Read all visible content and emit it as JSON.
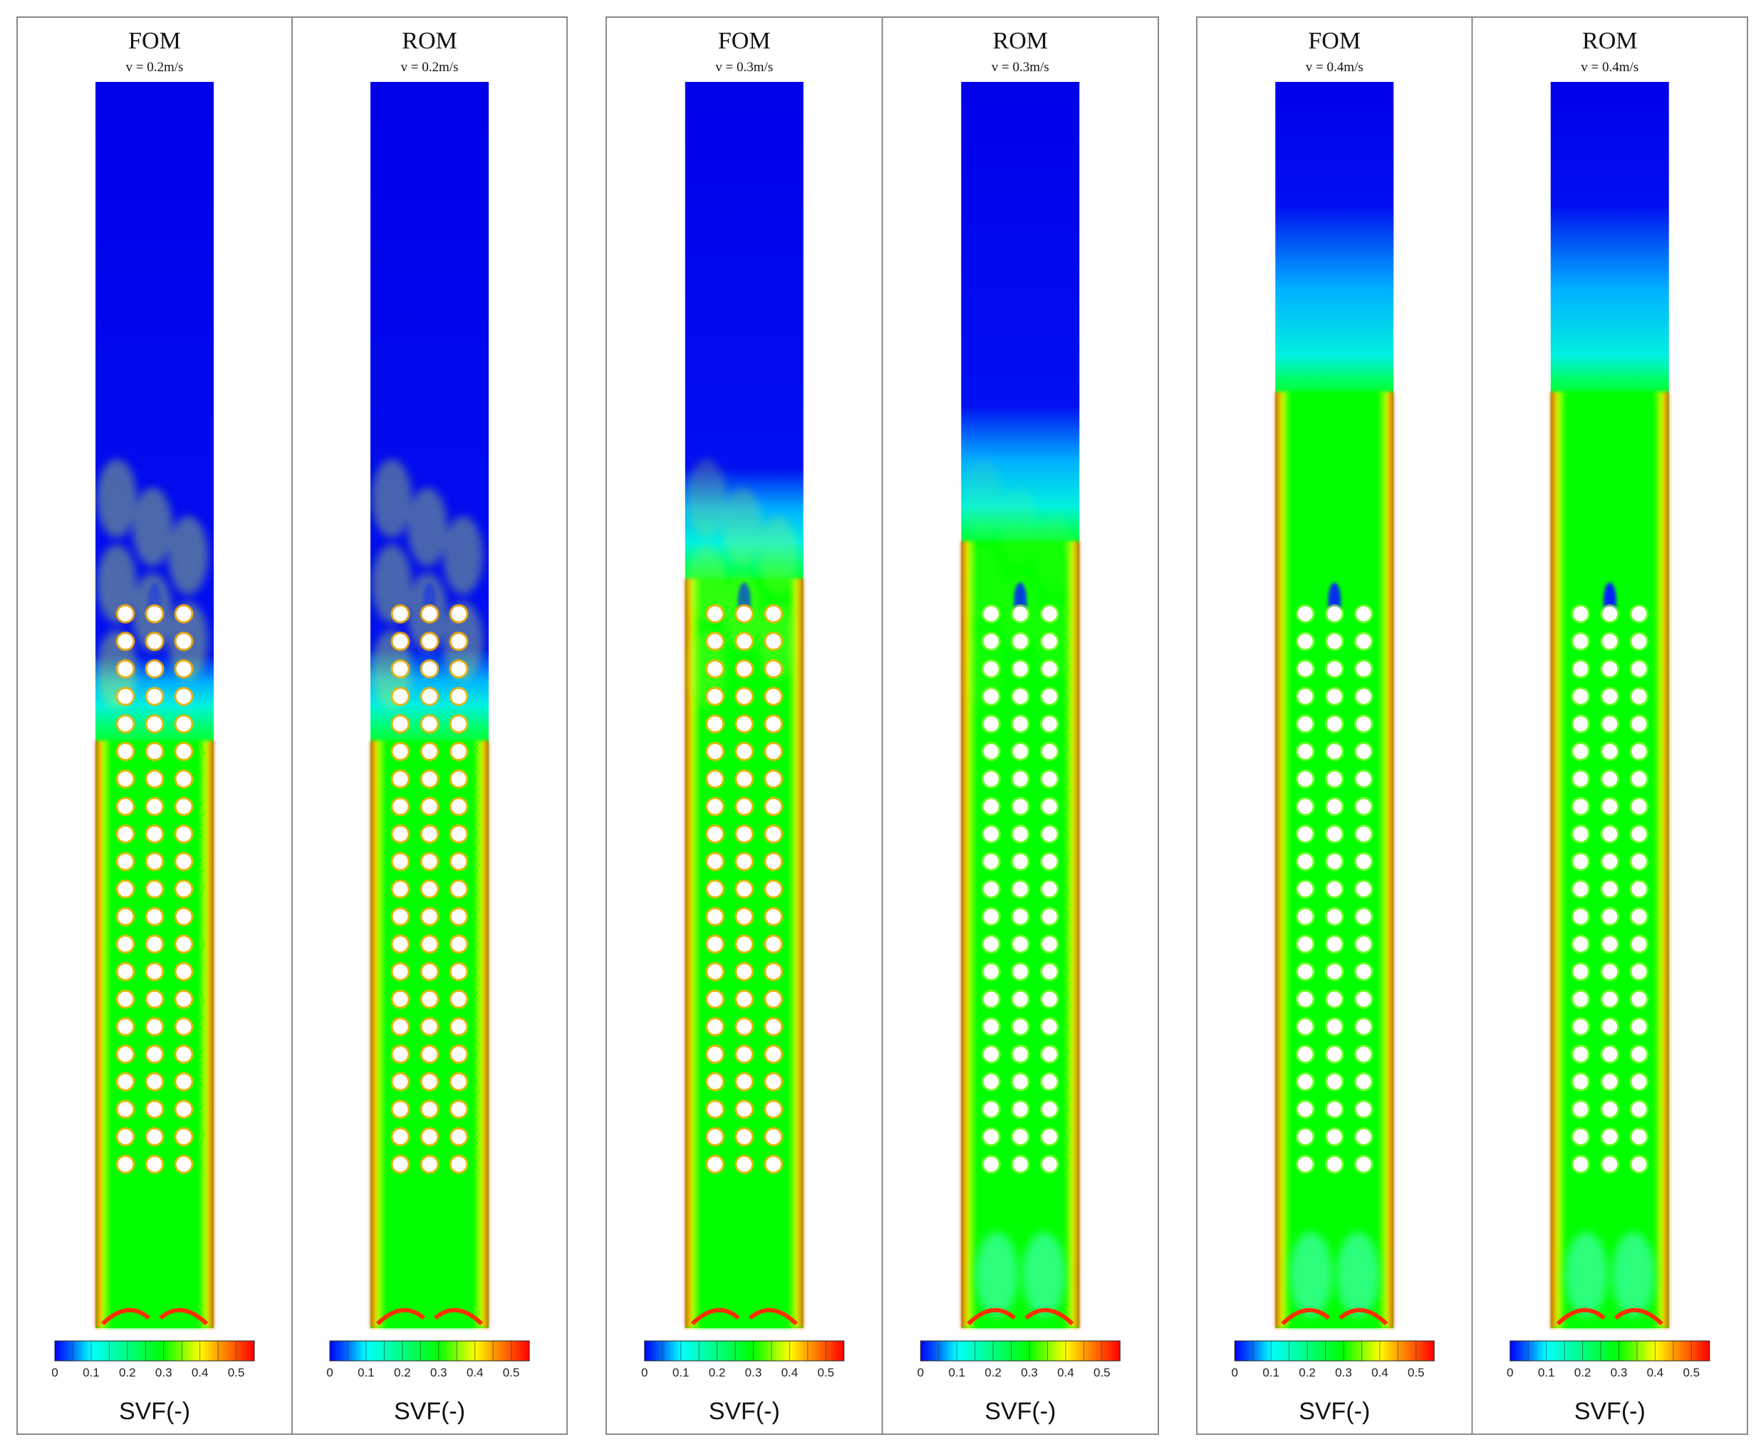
{
  "figure": {
    "colorbar": {
      "stops": [
        {
          "value": 0.0,
          "color": "#0000ff"
        },
        {
          "value": 0.05,
          "color": "#0070ff"
        },
        {
          "value": 0.1,
          "color": "#00ffff"
        },
        {
          "value": 0.2,
          "color": "#00ff80"
        },
        {
          "value": 0.3,
          "color": "#00ff00"
        },
        {
          "value": 0.4,
          "color": "#ffff00"
        },
        {
          "value": 0.45,
          "color": "#ffa000"
        },
        {
          "value": 0.55,
          "color": "#ff0000"
        }
      ],
      "ticks": [
        "0",
        "0.1",
        "0.2",
        "0.3",
        "0.4",
        "0.5"
      ],
      "label": "SVF(-)"
    },
    "groups": [
      {
        "panels": [
          {
            "model": "FOM",
            "velocity": "v = 0.2m/s",
            "bed_height": 0.5,
            "cyan_band": 0.04,
            "vortex": 0.15
          },
          {
            "model": "ROM",
            "velocity": "v = 0.2m/s",
            "bed_height": 0.5,
            "cyan_band": 0.045,
            "vortex": 0.2
          }
        ]
      },
      {
        "panels": [
          {
            "model": "FOM",
            "velocity": "v = 0.3m/s",
            "bed_height": 0.63,
            "cyan_band": 0.06,
            "vortex": 0.5
          },
          {
            "model": "ROM",
            "velocity": "v = 0.3m/s",
            "bed_height": 0.66,
            "cyan_band": 0.08,
            "vortex": 0.8
          }
        ]
      },
      {
        "panels": [
          {
            "model": "FOM",
            "velocity": "v = 0.4m/s",
            "bed_height": 0.78,
            "cyan_band": 0.12,
            "vortex": 0.9
          },
          {
            "model": "ROM",
            "velocity": "v = 0.4m/s",
            "bed_height": 0.78,
            "cyan_band": 0.12,
            "vortex": 1.0
          }
        ]
      }
    ],
    "tube_rows": 21,
    "tube_cols": 3
  }
}
